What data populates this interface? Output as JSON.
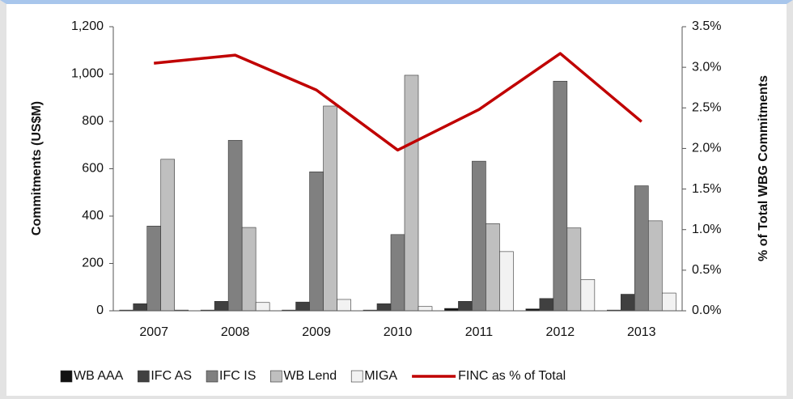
{
  "chart_data": {
    "type": "bar",
    "y_label": "Commitments (US$M)",
    "y2_label": "% of Total WBG Commitments",
    "categories": [
      "2007",
      "2008",
      "2009",
      "2010",
      "2011",
      "2012",
      "2013"
    ],
    "series": [
      {
        "name": "WB AAA",
        "color": "#111111",
        "values": [
          3,
          3,
          3,
          3,
          10,
          8,
          3
        ]
      },
      {
        "name": "IFC AS",
        "color": "#404040",
        "values": [
          30,
          40,
          37,
          30,
          40,
          52,
          70
        ]
      },
      {
        "name": "IFC IS",
        "color": "#808080",
        "values": [
          358,
          720,
          587,
          322,
          632,
          970,
          528
        ]
      },
      {
        "name": "WB Lend",
        "color": "#bfbfbf",
        "values": [
          640,
          352,
          865,
          995,
          368,
          350,
          380
        ]
      },
      {
        "name": "MIGA",
        "color": "#f2f2f2",
        "values": [
          3,
          35,
          48,
          18,
          250,
          132,
          75
        ]
      },
      {
        "name": "FINC as % of Total",
        "color": "#c00000",
        "type": "line",
        "axis": "y2",
        "values": [
          3.05,
          3.15,
          2.72,
          1.98,
          2.48,
          3.17,
          2.33
        ]
      }
    ],
    "ylim": [
      0,
      1200
    ],
    "yticks": [
      0,
      200,
      400,
      600,
      800,
      {
        "value": 1000,
        "label": "1,000"
      },
      {
        "value": 1200,
        "label": "1,200"
      }
    ],
    "y2lim": [
      0,
      3.5
    ],
    "y2ticks": [
      {
        "value": 0,
        "label": "0.0%"
      },
      {
        "value": 0.5,
        "label": "0.5%"
      },
      {
        "value": 1,
        "label": "1.0%"
      },
      {
        "value": 1.5,
        "label": "1.5%"
      },
      {
        "value": 2,
        "label": "2.0%"
      },
      {
        "value": 2.5,
        "label": "2.5%"
      },
      {
        "value": 3,
        "label": "3.0%"
      },
      {
        "value": 3.5,
        "label": "3.5%"
      }
    ],
    "legend": "bottom"
  }
}
